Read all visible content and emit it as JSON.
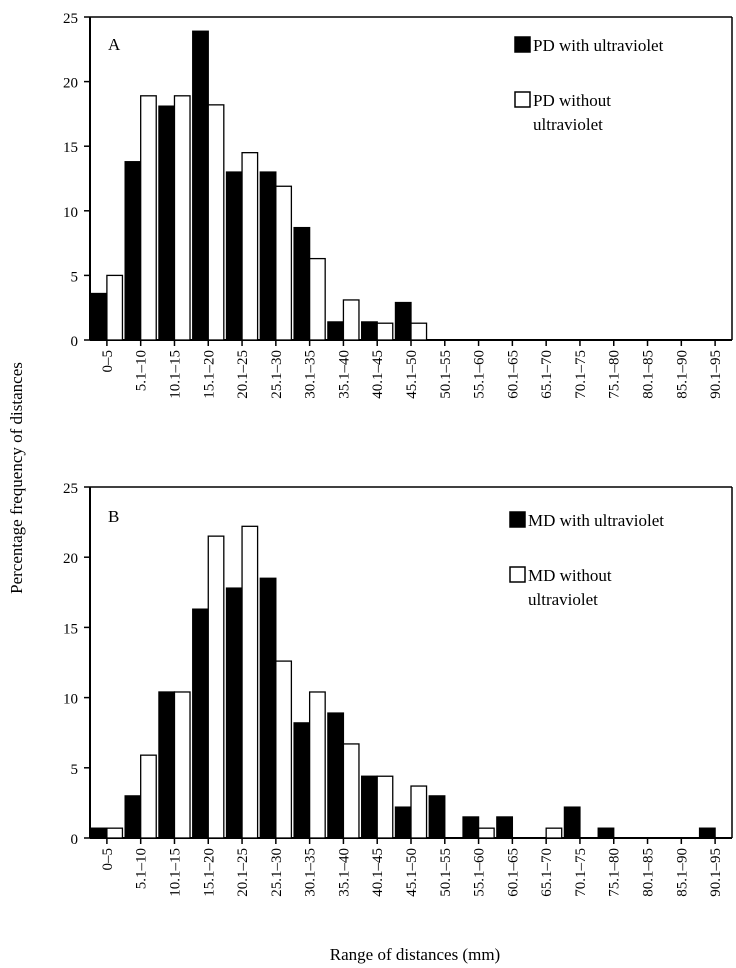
{
  "figure": {
    "ylabel": "Percentage frequency of distances",
    "xlabel": "Range of distances (mm)"
  },
  "chart_data": [
    {
      "type": "bar",
      "panel": "A",
      "categories": [
        "0–5",
        "5.1–10",
        "10.1–15",
        "15.1–20",
        "20.1–25",
        "25.1–30",
        "30.1–35",
        "35.1–40",
        "40.1–45",
        "45.1–50",
        "50.1–55",
        "55.1–60",
        "60.1–65",
        "65.1–70",
        "70.1–75",
        "75.1–80",
        "80.1–85",
        "85.1–90",
        "90.1–95"
      ],
      "series": [
        {
          "name": "PD with ultraviolet",
          "fill": "#000000",
          "values": [
            3.6,
            13.8,
            18.1,
            23.9,
            13.0,
            13.0,
            8.7,
            1.4,
            1.4,
            2.9,
            0,
            0,
            0,
            0,
            0,
            0,
            0,
            0,
            0
          ]
        },
        {
          "name": "PD without ultraviolet",
          "fill": "#ffffff",
          "values": [
            5.0,
            18.9,
            18.9,
            18.2,
            14.5,
            11.9,
            6.3,
            3.1,
            1.3,
            1.3,
            0,
            0,
            0,
            0,
            0,
            0,
            0,
            0,
            0
          ]
        }
      ],
      "legend": {
        "items": [
          "PD with ultraviolet",
          "PD without ultraviolet"
        ],
        "lines": [
          [
            "PD with ultraviolet"
          ],
          [
            "PD without",
            "ultraviolet"
          ]
        ],
        "position": "top-right"
      },
      "ylim": [
        0,
        25
      ],
      "yticks": [
        "0",
        "5",
        "10",
        "15",
        "20",
        "25"
      ]
    },
    {
      "type": "bar",
      "panel": "B",
      "categories": [
        "0–5",
        "5.1–10",
        "10.1–15",
        "15.1–20",
        "20.1–25",
        "25.1–30",
        "30.1–35",
        "35.1–40",
        "40.1–45",
        "45.1–50",
        "50.1–55",
        "55.1–60",
        "60.1–65",
        "65.1–70",
        "70.1–75",
        "75.1–80",
        "80.1–85",
        "85.1–90",
        "90.1–95"
      ],
      "series": [
        {
          "name": "MD with ultraviolet",
          "fill": "#000000",
          "values": [
            0.7,
            3.0,
            10.4,
            16.3,
            17.8,
            18.5,
            8.2,
            8.9,
            4.4,
            2.2,
            3.0,
            1.5,
            1.5,
            0,
            2.2,
            0.7,
            0,
            0,
            0.7
          ]
        },
        {
          "name": "MD without ultraviolet",
          "fill": "#ffffff",
          "values": [
            0.7,
            5.9,
            10.4,
            21.5,
            22.2,
            12.6,
            10.4,
            6.7,
            4.4,
            3.7,
            0,
            0.7,
            0,
            0.7,
            0,
            0,
            0,
            0,
            0
          ]
        }
      ],
      "legend": {
        "items": [
          "MD with ultraviolet",
          "MD without ultraviolet"
        ],
        "lines": [
          [
            "MD with ultraviolet"
          ],
          [
            "MD without",
            "ultraviolet"
          ]
        ],
        "position": "top-right"
      },
      "ylim": [
        0,
        25
      ],
      "yticks": [
        "0",
        "5",
        "10",
        "15",
        "20",
        "25"
      ]
    }
  ]
}
